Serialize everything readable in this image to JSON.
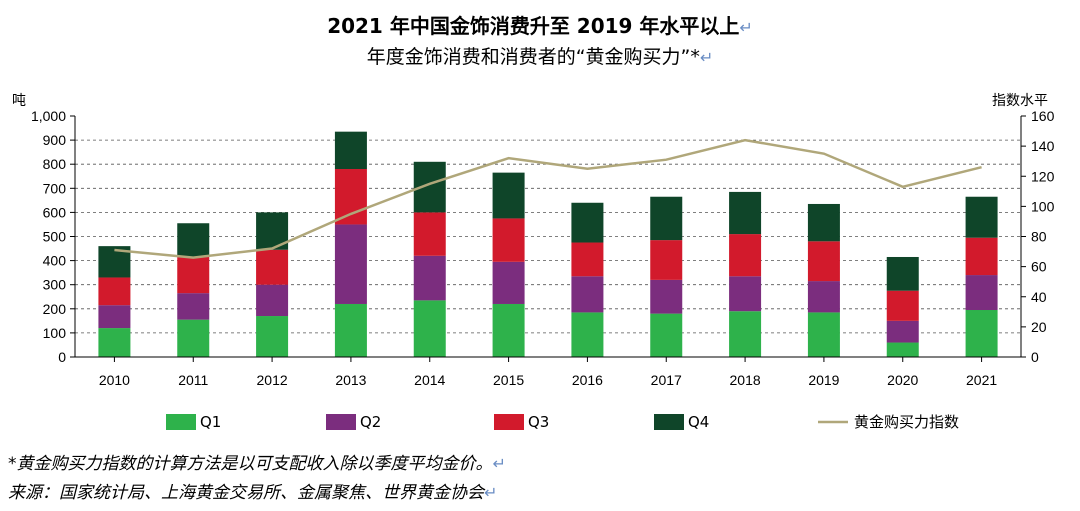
{
  "title": "2021 年中国金饰消费升至 2019 年水平以上",
  "subtitle": "年度金饰消费和消费者的“黄金购买力”*",
  "return_mark": "↵",
  "footnote": "*黄金购买力指数的计算方法是以可支配收入除以季度平均金价。",
  "source": "来源：国家统计局、上海黄金交易所、金属聚焦、世界黄金协会",
  "colors": {
    "Q1": "#2eb24b",
    "Q2": "#7b2d7e",
    "Q3": "#d21a2c",
    "Q4": "#0f4529",
    "index": "#b0a77a",
    "grid": "#555555"
  },
  "chart_data": {
    "type": "bar",
    "stacked": true,
    "categories": [
      "2010",
      "2011",
      "2012",
      "2013",
      "2014",
      "2015",
      "2016",
      "2017",
      "2018",
      "2019",
      "2020",
      "2021"
    ],
    "series": [
      {
        "name": "Q1",
        "values": [
          120,
          155,
          170,
          220,
          235,
          220,
          185,
          180,
          190,
          185,
          60,
          195
        ]
      },
      {
        "name": "Q2",
        "values": [
          95,
          110,
          130,
          330,
          185,
          175,
          150,
          140,
          145,
          130,
          90,
          145
        ]
      },
      {
        "name": "Q3",
        "values": [
          115,
          150,
          145,
          230,
          180,
          180,
          140,
          165,
          175,
          165,
          125,
          155
        ]
      },
      {
        "name": "Q4",
        "values": [
          130,
          140,
          155,
          155,
          210,
          190,
          165,
          180,
          175,
          155,
          140,
          170
        ]
      }
    ],
    "line_series": {
      "name": "黄金购买力指数",
      "axis": "right",
      "values": [
        71,
        66,
        72,
        95,
        115,
        132,
        125,
        131,
        144,
        135,
        113,
        126
      ]
    },
    "ylabel": "吨",
    "ylabel_right": "指数水平",
    "ylim": [
      0,
      1000
    ],
    "ylim_right": [
      0,
      160
    ],
    "yticks": [
      "0",
      "100",
      "200",
      "300",
      "400",
      "500",
      "600",
      "700",
      "800",
      "900",
      "1,000"
    ],
    "yticks_right": [
      "0",
      "20",
      "40",
      "60",
      "80",
      "100",
      "120",
      "140",
      "160"
    ],
    "grid": "horizontal dashed",
    "legend": "bottom"
  }
}
